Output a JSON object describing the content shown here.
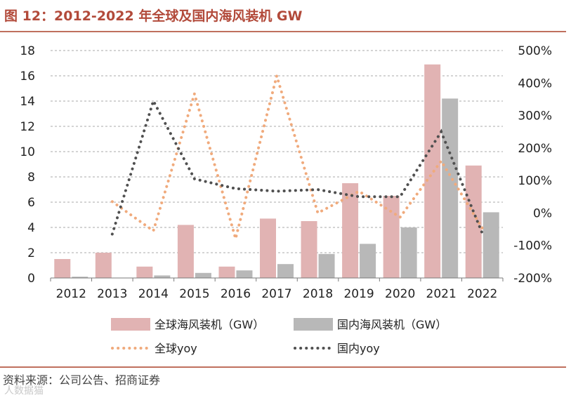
{
  "header": {
    "title": "图 12：2012-2022 年全球及国内海风装机 GW"
  },
  "footer": {
    "source": "资料来源：公司公告、招商证券",
    "watermark": "人数据猫"
  },
  "chart_data": {
    "type": "bar",
    "categories": [
      "2012",
      "2013",
      "2014",
      "2015",
      "2016",
      "2017",
      "2018",
      "2019",
      "2020",
      "2021",
      "2022"
    ],
    "series": [
      {
        "name": "全球海风装机（GW）",
        "type": "bar",
        "axis": "left",
        "color": "#e1b3b3",
        "values": [
          1.5,
          2.0,
          0.9,
          4.2,
          0.9,
          4.7,
          4.5,
          7.5,
          6.5,
          16.9,
          8.9
        ]
      },
      {
        "name": "国内海风装机（GW）",
        "type": "bar",
        "axis": "left",
        "color": "#b8b8b8",
        "values": [
          0.1,
          null,
          0.2,
          0.4,
          0.6,
          1.1,
          1.9,
          2.7,
          4.0,
          14.2,
          5.2
        ]
      },
      {
        "name": "全球yoy",
        "type": "line",
        "style": "dotted",
        "axis": "right",
        "color": "#f0aa7c",
        "values": [
          null,
          0.35,
          -0.55,
          3.67,
          -0.79,
          4.22,
          0.0,
          0.67,
          -0.13,
          1.6,
          -0.47
        ]
      },
      {
        "name": "国内yoy",
        "type": "line",
        "style": "dotted",
        "axis": "right",
        "color": "#505050",
        "values": [
          null,
          -0.65,
          3.45,
          1.05,
          0.75,
          0.67,
          0.72,
          0.5,
          0.5,
          2.5,
          -0.63
        ]
      }
    ],
    "left_axis": {
      "min": 0,
      "max": 18,
      "step": 2,
      "ticks": [
        "0",
        "2",
        "4",
        "6",
        "8",
        "10",
        "12",
        "14",
        "16",
        "18"
      ]
    },
    "right_axis": {
      "min": -2,
      "max": 5,
      "step": 1,
      "ticks": [
        "-200%",
        "-100%",
        "0%",
        "100%",
        "200%",
        "300%",
        "400%",
        "500%"
      ]
    },
    "grid": "horizontal-dashed",
    "legend_position": "bottom"
  }
}
